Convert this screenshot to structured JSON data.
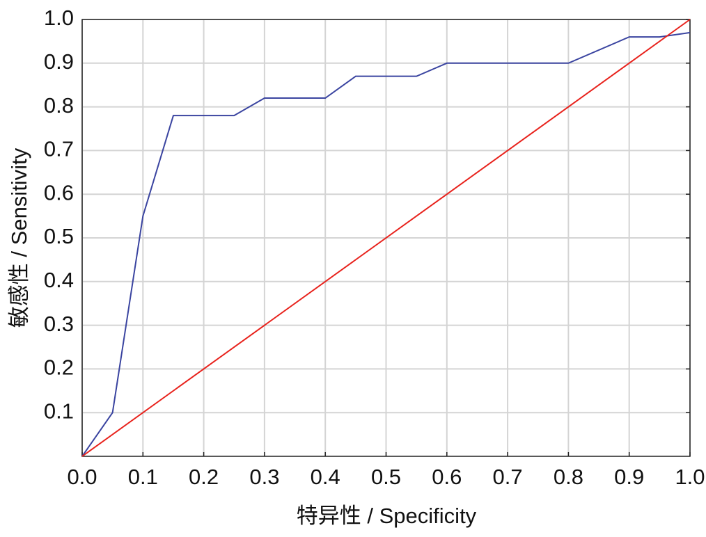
{
  "chart_data": {
    "type": "line",
    "xlabel": "特异性 / Specificity",
    "ylabel": "敏感性 / Sensitivity",
    "xlim": [
      0,
      1
    ],
    "ylim": [
      0,
      1
    ],
    "xticks": [
      {
        "value": 0,
        "label": "0.0"
      },
      0.1,
      0.2,
      0.3,
      0.4,
      0.5,
      0.6,
      0.7,
      0.8,
      0.9,
      {
        "value": 1,
        "label": "1.0"
      }
    ],
    "yticks": [
      0.1,
      0.2,
      0.3,
      0.4,
      0.5,
      0.6,
      0.7,
      0.8,
      0.9,
      {
        "value": 1,
        "label": "1.0"
      }
    ],
    "grid": true,
    "series": [
      {
        "color": "#3a44a0",
        "x": [
          0,
          0.05,
          0.1,
          0.15,
          0.25,
          0.3,
          0.4,
          0.45,
          0.55,
          0.6,
          0.8,
          0.9,
          0.95,
          1
        ],
        "values": [
          0,
          0.1,
          0.55,
          0.78,
          0.78,
          0.82,
          0.82,
          0.87,
          0.87,
          0.9,
          0.9,
          0.96,
          0.96,
          0.97
        ]
      },
      {
        "color": "#e8221c",
        "x": [
          0,
          1
        ],
        "values": [
          0,
          1
        ]
      }
    ]
  }
}
